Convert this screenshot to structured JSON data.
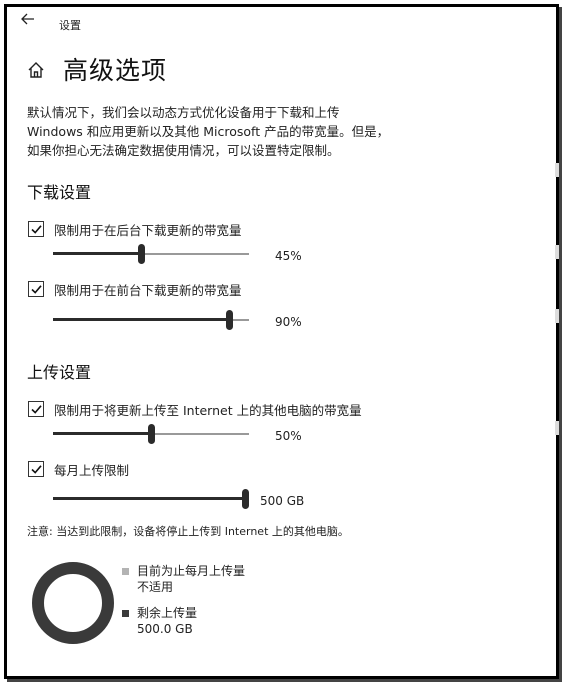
{
  "window": {
    "title": "设置",
    "back_icon": "back-arrow-icon"
  },
  "header": {
    "title": "高级选项",
    "home_icon": "home-icon"
  },
  "description": {
    "line1": "默认情况下，我们会以动态方式优化设备用于下载和上传",
    "line2": "Windows 和应用更新以及其他 Microsoft 产品的带宽量。但是，",
    "line3": "如果你担心无法确定数据使用情况，可以设置特定限制。"
  },
  "download": {
    "title": "下载设置",
    "background": {
      "label": "限制用于在后台下载更新的带宽量",
      "checked": true,
      "value_text": "45%",
      "percent": 45
    },
    "foreground": {
      "label": "限制用于在前台下载更新的带宽量",
      "checked": true,
      "value_text": "90%",
      "percent": 90
    }
  },
  "upload": {
    "title": "上传设置",
    "bandwidth": {
      "label": "限制用于将更新上传至 Internet 上的其他电脑的带宽量",
      "checked": true,
      "value_text": "50%",
      "percent": 50
    },
    "monthly": {
      "label": "每月上传限制",
      "checked": true,
      "value_text": "500 GB",
      "percent": 100
    },
    "note": "注意: 当达到此限制，设备将停止上传到 Internet 上的其他电脑。"
  },
  "usage": {
    "uploaded": {
      "label": "目前为止每月上传量",
      "value": "不适用",
      "color": "#b3b3b3"
    },
    "remaining": {
      "label": "剩余上传量",
      "value": "500.0 GB",
      "color": "#3a3a3a"
    },
    "remaining_fraction": 1.0
  },
  "colors": {
    "accent": "#2b2b2b",
    "track": "#999999",
    "donut": "#3a3a3a"
  }
}
